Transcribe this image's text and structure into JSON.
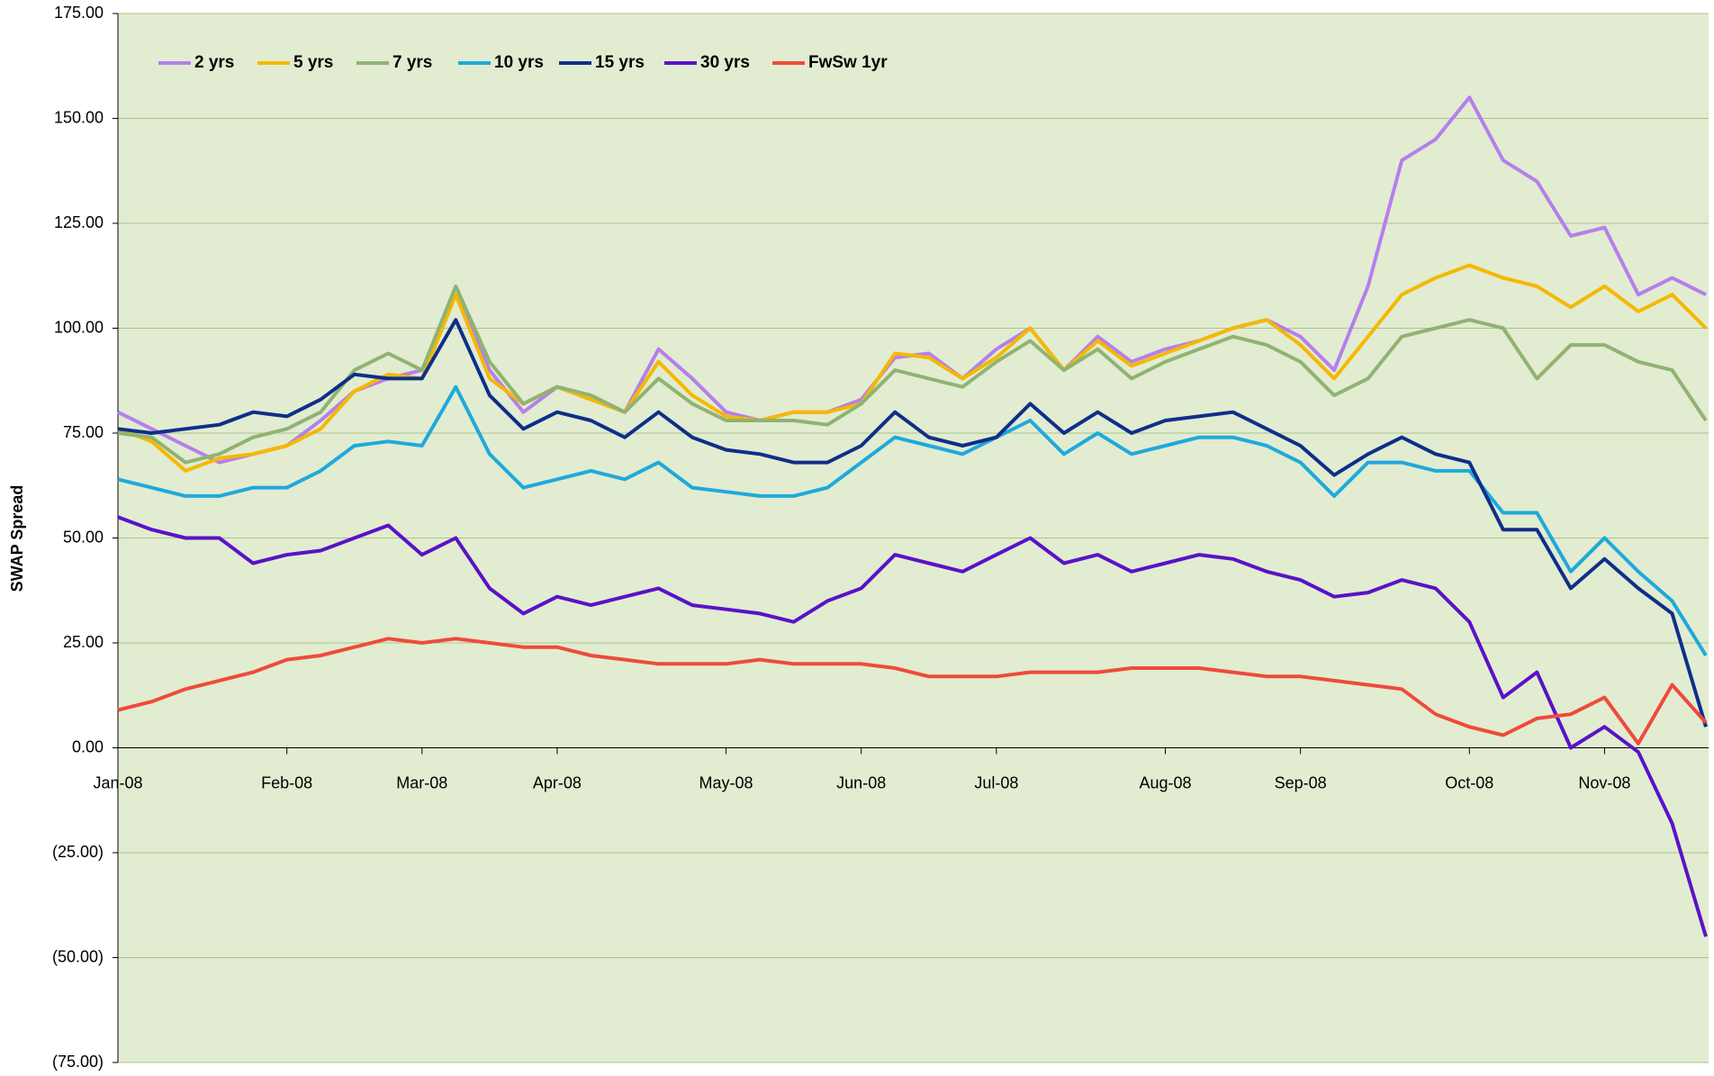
{
  "chart_data": {
    "type": "line",
    "y_axis_label": "SWAP Spread",
    "categories": [
      "Jan-08",
      null,
      null,
      null,
      null,
      "Feb-08",
      null,
      null,
      null,
      "Mar-08",
      null,
      null,
      null,
      "Apr-08",
      null,
      null,
      null,
      null,
      "May-08",
      null,
      null,
      null,
      "Jun-08",
      null,
      null,
      null,
      "Jul-08",
      null,
      null,
      null,
      null,
      "Aug-08",
      null,
      null,
      null,
      "Sep-08",
      null,
      null,
      null,
      null,
      "Oct-08",
      null,
      null,
      null,
      "Nov-08",
      null,
      null,
      null
    ],
    "series": [
      {
        "name": "2 yrs",
        "color": "#b57fec",
        "values": [
          80,
          76,
          72,
          68,
          70,
          72,
          78,
          85,
          88,
          90,
          108,
          90,
          80,
          86,
          84,
          80,
          95,
          88,
          80,
          78,
          80,
          80,
          83,
          93,
          94,
          88,
          95,
          100,
          90,
          98,
          92,
          95,
          97,
          100,
          102,
          98,
          90,
          110,
          140,
          145,
          155,
          140,
          135,
          122,
          124,
          108,
          112,
          108
        ]
      },
      {
        "name": "5 yrs",
        "color": "#f5b800",
        "values": [
          76,
          73,
          66,
          69,
          70,
          72,
          76,
          85,
          89,
          88,
          108,
          88,
          82,
          86,
          83,
          80,
          92,
          84,
          79,
          78,
          80,
          80,
          82,
          94,
          93,
          88,
          93,
          100,
          90,
          97,
          91,
          94,
          97,
          100,
          102,
          96,
          88,
          98,
          108,
          112,
          115,
          112,
          110,
          105,
          110,
          104,
          108,
          100
        ]
      },
      {
        "name": "7 yrs",
        "color": "#8fb373",
        "values": [
          75,
          74,
          68,
          70,
          74,
          76,
          80,
          90,
          94,
          90,
          110,
          92,
          82,
          86,
          84,
          80,
          88,
          82,
          78,
          78,
          78,
          77,
          82,
          90,
          88,
          86,
          92,
          97,
          90,
          95,
          88,
          92,
          95,
          98,
          96,
          92,
          84,
          88,
          98,
          100,
          102,
          100,
          88,
          96,
          96,
          92,
          90,
          78
        ]
      },
      {
        "name": "10 yrs",
        "color": "#1fa9dc",
        "values": [
          64,
          62,
          60,
          60,
          62,
          62,
          66,
          72,
          73,
          72,
          86,
          70,
          62,
          64,
          66,
          64,
          68,
          62,
          61,
          60,
          60,
          62,
          68,
          74,
          72,
          70,
          74,
          78,
          70,
          75,
          70,
          72,
          74,
          74,
          72,
          68,
          60,
          68,
          68,
          66,
          66,
          56,
          56,
          42,
          50,
          42,
          35,
          22
        ]
      },
      {
        "name": "15 yrs",
        "color": "#0d2f8a",
        "values": [
          76,
          75,
          76,
          77,
          80,
          79,
          83,
          89,
          88,
          88,
          102,
          84,
          76,
          80,
          78,
          74,
          80,
          74,
          71,
          70,
          68,
          68,
          72,
          80,
          74,
          72,
          74,
          82,
          75,
          80,
          75,
          78,
          79,
          80,
          76,
          72,
          65,
          70,
          74,
          70,
          68,
          52,
          52,
          38,
          45,
          38,
          32,
          5
        ]
      },
      {
        "name": "30 yrs",
        "color": "#5a12c8",
        "values": [
          55,
          52,
          50,
          50,
          44,
          46,
          47,
          50,
          53,
          46,
          50,
          38,
          32,
          36,
          34,
          36,
          38,
          34,
          33,
          32,
          30,
          35,
          38,
          46,
          44,
          42,
          46,
          50,
          44,
          46,
          42,
          44,
          46,
          45,
          42,
          40,
          36,
          37,
          40,
          38,
          30,
          12,
          18,
          0,
          5,
          -1,
          -18,
          -45
        ]
      },
      {
        "name": "FwSw 1yr",
        "color": "#ee4b3a",
        "values": [
          9,
          11,
          14,
          16,
          18,
          21,
          22,
          24,
          26,
          25,
          26,
          25,
          24,
          24,
          22,
          21,
          20,
          20,
          20,
          21,
          20,
          20,
          20,
          19,
          17,
          17,
          17,
          18,
          18,
          18,
          19,
          19,
          19,
          18,
          17,
          17,
          16,
          15,
          14,
          8,
          5,
          3,
          7,
          8,
          12,
          1,
          15,
          6
        ]
      }
    ],
    "ylim": [
      -75,
      175
    ],
    "yticks": [
      {
        "value": -75,
        "label": "(75.00)"
      },
      {
        "value": -50,
        "label": "(50.00)"
      },
      {
        "value": -25,
        "label": "(25.00)"
      },
      {
        "value": 0,
        "label": "0.00"
      },
      {
        "value": 25,
        "label": "25.00"
      },
      {
        "value": 50,
        "label": "50.00"
      },
      {
        "value": 75,
        "label": "75.00"
      },
      {
        "value": 100,
        "label": "100.00"
      },
      {
        "value": 125,
        "label": "125.00"
      },
      {
        "value": 150,
        "label": "150.00"
      },
      {
        "value": 175,
        "label": "175.00"
      }
    ],
    "grid": true,
    "negative_tick_color": "#ff0000",
    "plot_background": "#e2ecd0",
    "legend_position": "top-left"
  }
}
